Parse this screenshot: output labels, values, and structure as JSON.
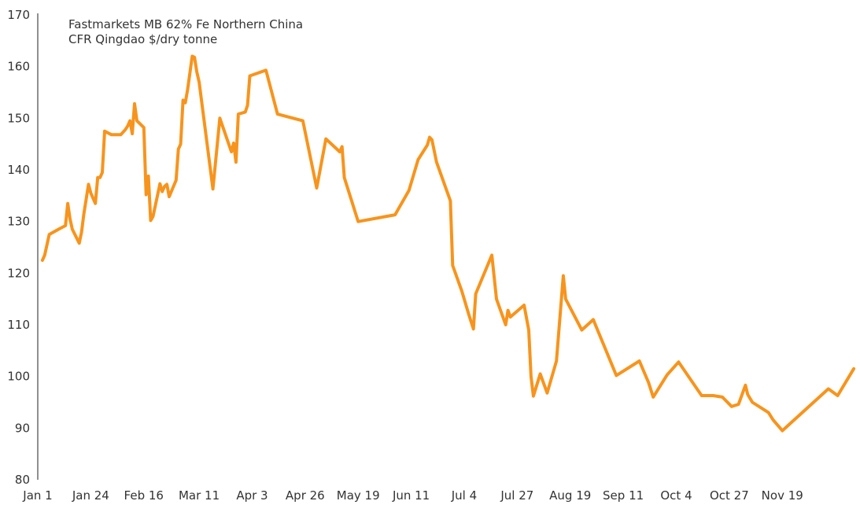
{
  "chart_data": {
    "type": "line",
    "title_lines": [
      "Fastmarkets MB 62% Fe Northern China",
      "CFR Qingdao $/dry tonne"
    ],
    "xlabel": "",
    "ylabel": "",
    "ylim": [
      80,
      170
    ],
    "yticks": [
      80,
      90,
      100,
      110,
      120,
      130,
      140,
      150,
      160,
      170
    ],
    "xlim": [
      "Jan 1",
      "Dec 1"
    ],
    "xticks": [
      {
        "label": "Jan 1",
        "date": "2024-01-01"
      },
      {
        "label": "Jan 24",
        "date": "2024-01-24"
      },
      {
        "label": "Feb 16",
        "date": "2024-02-16"
      },
      {
        "label": "Mar 11",
        "date": "2024-03-11"
      },
      {
        "label": "Apr 3",
        "date": "2024-04-03"
      },
      {
        "label": "Apr 26",
        "date": "2024-04-26"
      },
      {
        "label": "May 19",
        "date": "2024-05-19"
      },
      {
        "label": "Jun 11",
        "date": "2024-06-11"
      },
      {
        "label": "Jul 4",
        "date": "2024-07-04"
      },
      {
        "label": "Jul 27",
        "date": "2024-07-27"
      },
      {
        "label": "Aug 19",
        "date": "2024-08-19"
      },
      {
        "label": "Sep 11",
        "date": "2024-09-11"
      },
      {
        "label": "Oct 4",
        "date": "2024-10-04"
      },
      {
        "label": "Oct 27",
        "date": "2024-10-27"
      },
      {
        "label": "Nov 19",
        "date": "2024-11-19"
      }
    ],
    "grid": false,
    "legend": "none",
    "line_color": "#F7941D",
    "series": [
      {
        "points": [
          [
            "2024-01-03",
            122.5
          ],
          [
            "2024-01-04",
            123.5
          ],
          [
            "2024-01-05",
            125.5
          ],
          [
            "2024-01-06",
            127.5
          ],
          [
            "2024-01-10",
            128.5
          ],
          [
            "2024-01-13",
            129.2
          ],
          [
            "2024-01-14",
            133.5
          ],
          [
            "2024-01-15",
            130.5
          ],
          [
            "2024-01-16",
            128.5
          ],
          [
            "2024-01-19",
            125.8
          ],
          [
            "2024-01-20",
            128.0
          ],
          [
            "2024-01-21",
            131.5
          ],
          [
            "2024-01-23",
            137.2
          ],
          [
            "2024-01-24",
            135.5
          ],
          [
            "2024-01-26",
            133.5
          ],
          [
            "2024-01-27",
            138.5
          ],
          [
            "2024-01-28",
            138.5
          ],
          [
            "2024-01-29",
            139.5
          ],
          [
            "2024-01-30",
            147.5
          ],
          [
            "2024-02-02",
            146.8
          ],
          [
            "2024-02-06",
            146.8
          ],
          [
            "2024-02-08",
            147.8
          ],
          [
            "2024-02-09",
            148.5
          ],
          [
            "2024-02-10",
            149.5
          ],
          [
            "2024-02-11",
            147.0
          ],
          [
            "2024-02-12",
            152.8
          ],
          [
            "2024-02-13",
            149.5
          ],
          [
            "2024-02-16",
            148.2
          ],
          [
            "2024-02-17",
            135.2
          ],
          [
            "2024-02-18",
            138.8
          ],
          [
            "2024-02-19",
            130.2
          ],
          [
            "2024-02-20",
            131.0
          ],
          [
            "2024-02-23",
            137.3
          ],
          [
            "2024-02-24",
            135.8
          ],
          [
            "2024-02-25",
            136.8
          ],
          [
            "2024-02-26",
            137.2
          ],
          [
            "2024-02-27",
            134.8
          ],
          [
            "2024-03-01",
            138.0
          ],
          [
            "2024-03-02",
            144.0
          ],
          [
            "2024-03-03",
            145.0
          ],
          [
            "2024-03-04",
            153.5
          ],
          [
            "2024-03-05",
            153.0
          ],
          [
            "2024-03-06",
            155.5
          ],
          [
            "2024-03-08",
            162.0
          ],
          [
            "2024-03-09",
            161.8
          ],
          [
            "2024-03-10",
            159.0
          ],
          [
            "2024-03-11",
            157.0
          ],
          [
            "2024-03-17",
            136.3
          ],
          [
            "2024-03-20",
            150.0
          ],
          [
            "2024-03-25",
            143.5
          ],
          [
            "2024-03-26",
            145.2
          ],
          [
            "2024-03-27",
            141.5
          ],
          [
            "2024-03-28",
            150.8
          ],
          [
            "2024-03-31",
            151.2
          ],
          [
            "2024-04-01",
            152.5
          ],
          [
            "2024-04-02",
            158.2
          ],
          [
            "2024-04-09",
            159.3
          ],
          [
            "2024-04-14",
            150.8
          ],
          [
            "2024-04-25",
            149.5
          ],
          [
            "2024-05-01",
            136.5
          ],
          [
            "2024-05-05",
            146.0
          ],
          [
            "2024-05-11",
            143.5
          ],
          [
            "2024-05-12",
            144.5
          ],
          [
            "2024-05-13",
            138.5
          ],
          [
            "2024-05-19",
            130.0
          ],
          [
            "2024-06-04",
            131.3
          ],
          [
            "2024-06-10",
            136.0
          ],
          [
            "2024-06-14",
            142.0
          ],
          [
            "2024-06-18",
            144.8
          ],
          [
            "2024-06-19",
            146.3
          ],
          [
            "2024-06-20",
            145.8
          ],
          [
            "2024-06-22",
            141.5
          ],
          [
            "2024-06-28",
            134.0
          ],
          [
            "2024-06-29",
            121.5
          ],
          [
            "2024-07-03",
            116.5
          ],
          [
            "2024-07-06",
            112.0
          ],
          [
            "2024-07-08",
            109.2
          ],
          [
            "2024-07-09",
            116.0
          ],
          [
            "2024-07-16",
            123.5
          ],
          [
            "2024-07-18",
            115.0
          ],
          [
            "2024-07-22",
            110.0
          ],
          [
            "2024-07-23",
            112.8
          ],
          [
            "2024-07-24",
            111.5
          ],
          [
            "2024-07-30",
            113.8
          ],
          [
            "2024-08-01",
            109.0
          ],
          [
            "2024-08-02",
            100.0
          ],
          [
            "2024-08-03",
            96.2
          ],
          [
            "2024-08-06",
            100.5
          ],
          [
            "2024-08-09",
            96.8
          ],
          [
            "2024-08-13",
            103.0
          ],
          [
            "2024-08-16",
            119.5
          ],
          [
            "2024-08-17",
            115.0
          ],
          [
            "2024-08-24",
            109.0
          ],
          [
            "2024-08-29",
            111.0
          ],
          [
            "2024-09-08",
            100.2
          ],
          [
            "2024-09-18",
            103.0
          ],
          [
            "2024-09-22",
            98.8
          ],
          [
            "2024-09-24",
            96.0
          ],
          [
            "2024-09-30",
            100.3
          ],
          [
            "2024-10-05",
            102.8
          ],
          [
            "2024-10-15",
            96.3
          ],
          [
            "2024-10-20",
            96.3
          ],
          [
            "2024-10-24",
            96.0
          ],
          [
            "2024-10-28",
            94.2
          ],
          [
            "2024-10-31",
            94.6
          ],
          [
            "2024-11-03",
            98.3
          ],
          [
            "2024-11-04",
            96.5
          ],
          [
            "2024-11-06",
            95.0
          ],
          [
            "2024-11-13",
            93.0
          ],
          [
            "2024-11-15",
            91.6
          ],
          [
            "2024-11-19",
            89.5
          ],
          [
            "2024-12-09",
            97.6
          ],
          [
            "2024-12-13",
            96.3
          ],
          [
            "2024-12-20",
            101.5
          ]
        ]
      }
    ]
  }
}
